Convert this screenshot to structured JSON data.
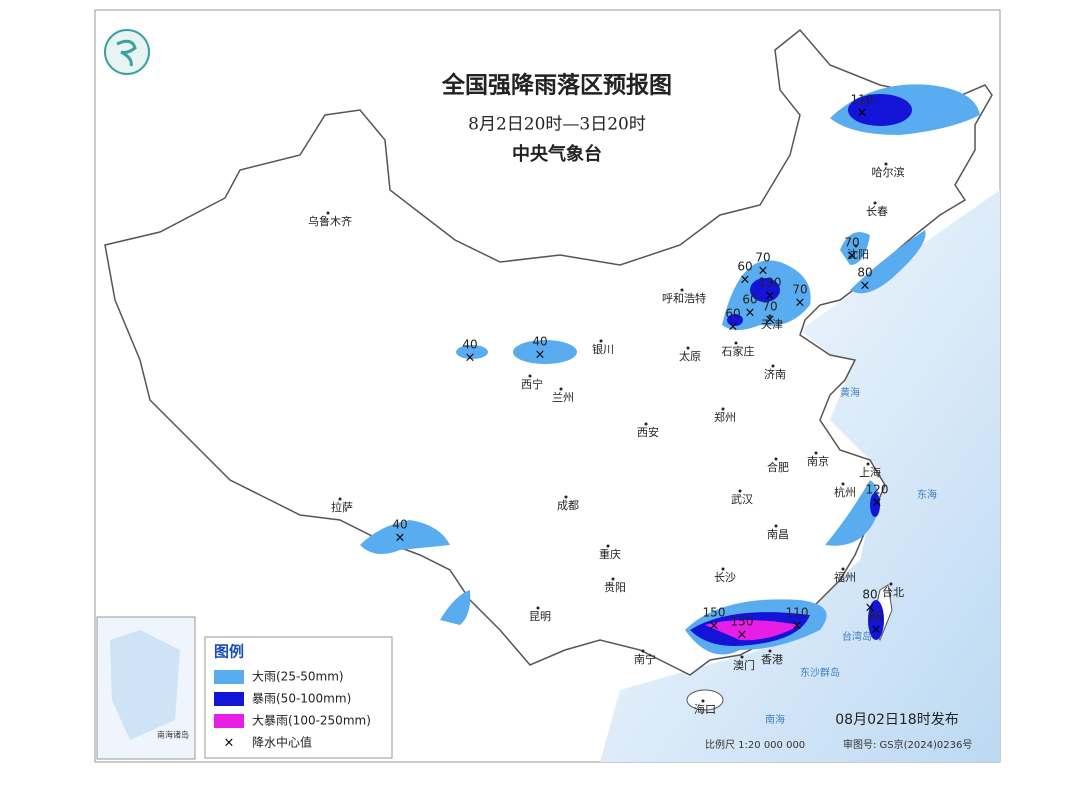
{
  "header": {
    "title": "全国强降雨落区预报图",
    "period": "8月2日20时—3日20时",
    "issuer": "中央气象台"
  },
  "cities": [
    "乌鲁木齐",
    "拉萨",
    "西宁",
    "兰州",
    "银川",
    "呼和浩特",
    "太原",
    "石家庄",
    "天津",
    "济南",
    "郑州",
    "西安",
    "成都",
    "重庆",
    "贵阳",
    "昆明",
    "南宁",
    "海口",
    "长沙",
    "武汉",
    "南昌",
    "合肥",
    "南京",
    "上海",
    "杭州",
    "福州",
    "台北",
    "香港",
    "澳门",
    "哈尔滨",
    "长春",
    "沈阳"
  ],
  "seas": [
    "黄海",
    "东海",
    "南海",
    "台湾岛",
    "东沙群岛"
  ],
  "rain_centers": [
    110,
    70,
    80,
    60,
    70,
    130,
    60,
    70,
    70,
    60,
    40,
    40,
    40,
    120,
    80,
    80,
    150,
    150,
    110
  ],
  "legend": {
    "title": "图例",
    "items": [
      "大雨(25-50mm)",
      "暴雨(50-100mm)",
      "大暴雨(100-250mm)",
      "降水中心值"
    ]
  },
  "inset": {
    "label": "南海诸岛"
  },
  "footer": {
    "issued": "08月02日18时发布",
    "scale": "比例尺 1:20 000 000",
    "approval": "审图号: GS京(2024)0236号"
  }
}
